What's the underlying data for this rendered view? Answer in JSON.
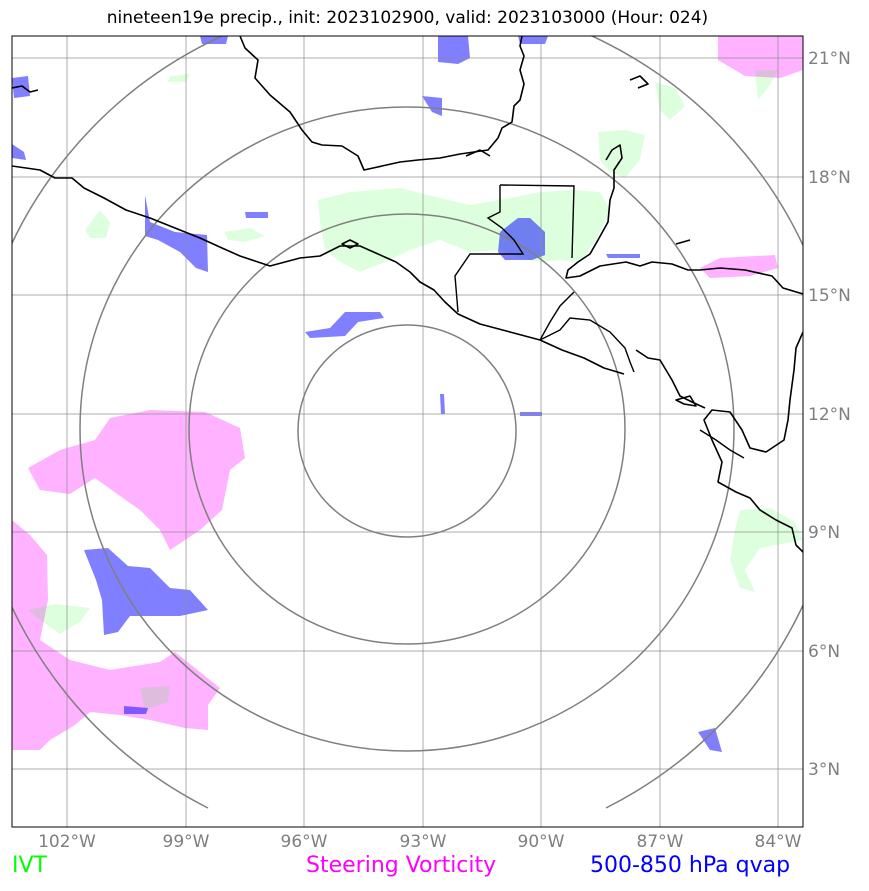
{
  "title": "nineteen19e precip., init: 2023102900, valid: 2023103000 (Hour: 024)",
  "lon_labels": [
    "102°W",
    "99°W",
    "96°W",
    "93°W",
    "90°W",
    "87°W",
    "84°W"
  ],
  "lat_labels": [
    "21°N",
    "18°N",
    "15°N",
    "12°N",
    "9°N",
    "6°N",
    "3°N"
  ],
  "legend": {
    "ivt": "IVT",
    "vorticity": "Steering Vorticity",
    "qvap": "500-850 hPa qvap"
  },
  "colors": {
    "ivt": "#00ff00",
    "vorticity": "#ff00ff",
    "qvap": "#0000ff",
    "grid": "#8c8c8c",
    "coast": "#000000"
  },
  "map": {
    "extent_lon": [
      -103.4,
      -83.4
    ],
    "extent_lat": [
      1.5,
      21.6
    ],
    "range_rings_center": [
      -93.3,
      11.6
    ],
    "range_rings_deg": [
      2.75,
      5.5,
      8.25,
      11.0
    ]
  }
}
